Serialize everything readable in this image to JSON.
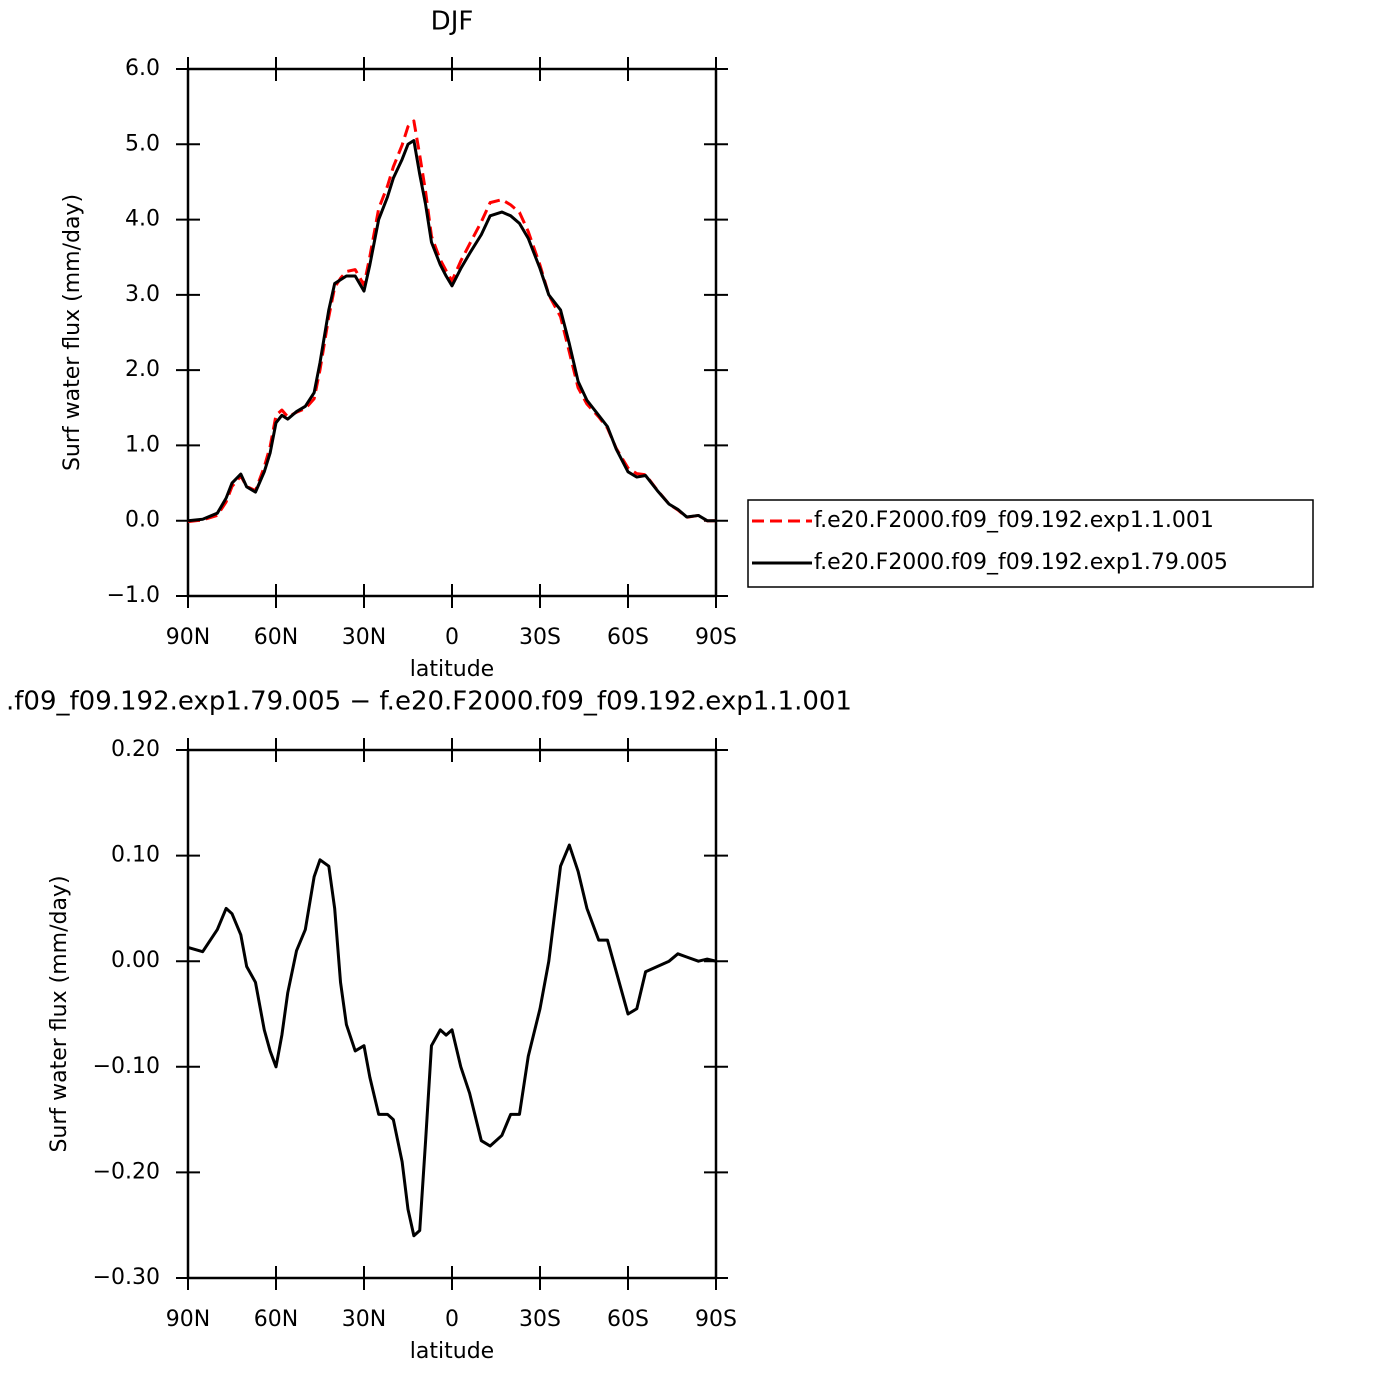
{
  "chart_data": [
    {
      "type": "line",
      "title": "DJF",
      "xlabel": "latitude",
      "ylabel": "Surf water flux (mm/day)",
      "x": [
        90,
        85,
        80,
        77,
        75,
        72,
        70,
        67,
        64,
        62,
        60,
        58,
        56,
        53,
        50,
        47,
        45,
        42,
        40,
        38,
        36,
        33,
        30,
        28,
        25,
        22,
        20,
        17,
        15,
        13,
        11,
        9,
        7,
        4,
        2,
        0,
        -3,
        -6,
        -10,
        -13,
        -17,
        -20,
        -23,
        -26,
        -30,
        -33,
        -37,
        -40,
        -43,
        -46,
        -50,
        -53,
        -56,
        -60,
        -63,
        -66,
        -70,
        -74,
        -77,
        -80,
        -84,
        -87,
        -90
      ],
      "xlim": [
        90,
        -90
      ],
      "xticks": [
        {
          "value": 90,
          "label": "90N"
        },
        {
          "value": 60,
          "label": "60N"
        },
        {
          "value": 30,
          "label": "30N"
        },
        0,
        {
          "value": -30,
          "label": "30S"
        },
        {
          "value": -60,
          "label": "60S"
        },
        {
          "value": -90,
          "label": "90S"
        }
      ],
      "ylim": [
        -1,
        6
      ],
      "yticks": [
        {
          "value": -1,
          "label": "−1.0"
        },
        {
          "value": 0,
          "label": "0.0"
        },
        {
          "value": 1,
          "label": "1.0"
        },
        {
          "value": 2,
          "label": "2.0"
        },
        {
          "value": 3,
          "label": "3.0"
        },
        {
          "value": 4,
          "label": "4.0"
        },
        {
          "value": 5,
          "label": "5.0"
        },
        {
          "value": 6,
          "label": "6.0"
        }
      ],
      "legend": "right",
      "series": [
        {
          "name": "f.e20.F2000.f09_f09.192.exp1.1.001",
          "color": "#ff0000",
          "linestyle": "dashed",
          "values": [
            -0.013,
            0.011,
            0.07,
            0.25,
            0.455,
            0.595,
            0.455,
            0.4,
            0.715,
            0.985,
            1.4,
            1.47,
            1.38,
            1.44,
            1.49,
            1.62,
            2.004,
            2.71,
            3.1,
            3.22,
            3.31,
            3.335,
            3.13,
            3.51,
            4.145,
            4.445,
            4.7,
            4.99,
            5.235,
            5.31,
            4.855,
            4.37,
            3.78,
            3.465,
            3.32,
            3.185,
            3.45,
            3.675,
            3.97,
            4.225,
            4.265,
            4.195,
            4.095,
            3.84,
            3.395,
            3.0,
            2.71,
            2.24,
            1.765,
            1.55,
            1.38,
            1.23,
            0.96,
            0.7,
            0.625,
            0.61,
            0.405,
            0.22,
            0.143,
            0.046,
            0.07,
            -0.002,
            0.0
          ]
        },
        {
          "name": "f.e20.F2000.f09_f09.192.exp1.79.005",
          "color": "#000000",
          "linestyle": "solid",
          "values": [
            0.0,
            0.02,
            0.1,
            0.3,
            0.5,
            0.62,
            0.45,
            0.38,
            0.65,
            0.9,
            1.3,
            1.4,
            1.35,
            1.45,
            1.52,
            1.7,
            2.1,
            2.8,
            3.15,
            3.2,
            3.25,
            3.25,
            3.05,
            3.4,
            4.0,
            4.3,
            4.55,
            4.8,
            5.0,
            5.05,
            4.6,
            4.2,
            3.7,
            3.4,
            3.25,
            3.12,
            3.35,
            3.55,
            3.8,
            4.05,
            4.1,
            4.05,
            3.95,
            3.75,
            3.35,
            3.0,
            2.8,
            2.35,
            1.85,
            1.6,
            1.4,
            1.25,
            0.95,
            0.65,
            0.58,
            0.6,
            0.4,
            0.22,
            0.15,
            0.05,
            0.07,
            0.0,
            0.0
          ]
        }
      ]
    },
    {
      "type": "line",
      "title": ".f09_f09.192.exp1.79.005 − f.e20.F2000.f09_f09.192.exp1.1.001",
      "xlabel": "latitude",
      "ylabel": "Surf water flux (mm/day)",
      "x": [
        90,
        85,
        80,
        77,
        75,
        72,
        70,
        67,
        64,
        62,
        60,
        58,
        56,
        53,
        50,
        47,
        45,
        42,
        40,
        38,
        36,
        33,
        30,
        28,
        25,
        22,
        20,
        17,
        15,
        13,
        11,
        9,
        7,
        4,
        2,
        0,
        -3,
        -6,
        -10,
        -13,
        -17,
        -20,
        -23,
        -26,
        -30,
        -33,
        -37,
        -40,
        -43,
        -46,
        -50,
        -53,
        -56,
        -60,
        -63,
        -66,
        -70,
        -74,
        -77,
        -80,
        -84,
        -87,
        -90
      ],
      "xlim": [
        90,
        -90
      ],
      "xticks": [
        {
          "value": 90,
          "label": "90N"
        },
        {
          "value": 60,
          "label": "60N"
        },
        {
          "value": 30,
          "label": "30N"
        },
        0,
        {
          "value": -30,
          "label": "30S"
        },
        {
          "value": -60,
          "label": "60S"
        },
        {
          "value": -90,
          "label": "90S"
        }
      ],
      "ylim": [
        -0.3,
        0.2
      ],
      "yticks": [
        {
          "value": -0.3,
          "label": "−0.30"
        },
        {
          "value": -0.2,
          "label": "−0.20"
        },
        {
          "value": -0.1,
          "label": "−0.10"
        },
        {
          "value": 0,
          "label": "0.00"
        },
        {
          "value": 0.1,
          "label": "0.10"
        },
        {
          "value": 0.2,
          "label": "0.20"
        }
      ],
      "series": [
        {
          "color": "#000000",
          "linestyle": "solid",
          "values": [
            0.013,
            0.009,
            0.03,
            0.05,
            0.045,
            0.025,
            -0.005,
            -0.02,
            -0.065,
            -0.085,
            -0.1,
            -0.07,
            -0.03,
            0.01,
            0.03,
            0.08,
            0.096,
            0.09,
            0.05,
            -0.02,
            -0.06,
            -0.085,
            -0.08,
            -0.11,
            -0.145,
            -0.145,
            -0.15,
            -0.19,
            -0.235,
            -0.26,
            -0.255,
            -0.17,
            -0.08,
            -0.065,
            -0.07,
            -0.065,
            -0.1,
            -0.125,
            -0.17,
            -0.175,
            -0.165,
            -0.145,
            -0.145,
            -0.09,
            -0.045,
            0,
            0.09,
            0.11,
            0.085,
            0.05,
            0.02,
            0.02,
            -0.01,
            -0.05,
            -0.045,
            -0.01,
            -0.005,
            0,
            0.007,
            0.004,
            0,
            0.002,
            0
          ]
        }
      ]
    }
  ]
}
